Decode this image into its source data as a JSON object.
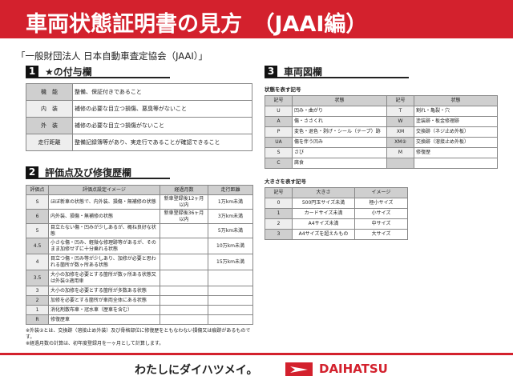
{
  "header": {
    "title": "車両状態証明書の見方　（JAAI編）"
  },
  "org": "「一般財団法人 日本自動車査定協会（JAAI）」",
  "section1": {
    "num": "1",
    "title": "★の付与欄",
    "rows": [
      {
        "k": "機　能",
        "v": "整備、保証付きであること"
      },
      {
        "k": "内　装",
        "v": "補修の必要な目立つ損傷、悪臭等がないこと"
      },
      {
        "k": "外　装",
        "v": "補修の必要な目立つ損傷がないこと"
      },
      {
        "k": "走行距離",
        "v": "整備記録簿等があり、実走行であることが確認できること"
      }
    ]
  },
  "section2": {
    "num": "2",
    "title": "評価点及び修復歴欄",
    "headers": [
      "評価点",
      "評価点設定イメージ",
      "経過月数",
      "走行距離"
    ],
    "rows": [
      [
        "S",
        "ほぼ新車の状態で、内外装、損傷・無補修の状態",
        "新車登録後12ヶ月以内",
        "1万km未満"
      ],
      [
        "6",
        "内外装、損傷・無補修の状態",
        "新車登録後36ヶ月以内",
        "3万km未満"
      ],
      [
        "5",
        "目立たない傷・凹みが少しあるが、概ね良好な状態",
        "",
        "5万km未満"
      ],
      [
        "4.5",
        "小さな傷・凹み、軽微な修理跡等があるが、そのまま加修せずに十分乗れる状態",
        "",
        "10万km未満"
      ],
      [
        "4",
        "目立つ傷・凹み等が少しあり、加修が必要と思われる箇所が数ヶ所ある状態",
        "",
        "15万km未満"
      ],
      [
        "3.5",
        "大小の加修を必要とする箇所が数ヶ所ある状態又は外装②適用車",
        "",
        ""
      ],
      [
        "3",
        "大小の加修を必要とする箇所が多数ある状態",
        "",
        ""
      ],
      [
        "2",
        "加修を必要とする箇所が車両全体にある状態",
        "",
        ""
      ],
      [
        "1",
        "消化剤散布車・冠水車（歴車を含む）",
        "",
        ""
      ],
      [
        "R",
        "修復歴車",
        "",
        ""
      ]
    ]
  },
  "notes": [
    "※外装②とは、交換跡（溶接止め外装）及び骨格部位に修復歴をともなわない損傷又は痕跡があるものです。",
    "※経過月数の計算は、初年度登録月を一ヶ月として計算します。"
  ],
  "section3": {
    "num": "3",
    "title": "車両図欄",
    "state_label": "状態を表す記号",
    "state_headers": [
      "記号",
      "状態",
      "記号",
      "状態"
    ],
    "state_rows": [
      [
        "U",
        "凹み・曲がり",
        "T",
        "割れ・亀裂・穴"
      ],
      [
        "A",
        "傷・ささくれ",
        "W",
        "塗装跡・板金修理跡"
      ],
      [
        "P",
        "変色・退色・剥げ・シール（テープ）跡",
        "XM",
        "交換跡（ネジ止め外板）"
      ],
      [
        "UA",
        "傷を伴う凹み",
        "XM②",
        "交換跡（溶接止め外板）"
      ],
      [
        "S",
        "さび",
        "M",
        "修復歴"
      ],
      [
        "C",
        "腐食",
        "",
        ""
      ]
    ],
    "size_label": "大きさを表す記号",
    "size_headers": [
      "記号",
      "大きさ",
      "イメージ"
    ],
    "size_rows": [
      [
        "0",
        "500円玉サイズ未満",
        "極小サイズ"
      ],
      [
        "1",
        "カードサイズ未満",
        "小サイズ"
      ],
      [
        "2",
        "A4サイズ未満",
        "中サイズ"
      ],
      [
        "3",
        "A4サイズを超えたもの",
        "大サイズ"
      ]
    ]
  },
  "footer": {
    "slogan": "わたしにダイハツメイ。",
    "brand": "DAIHATSU"
  },
  "colors": {
    "brand_red": "#d3212d"
  }
}
